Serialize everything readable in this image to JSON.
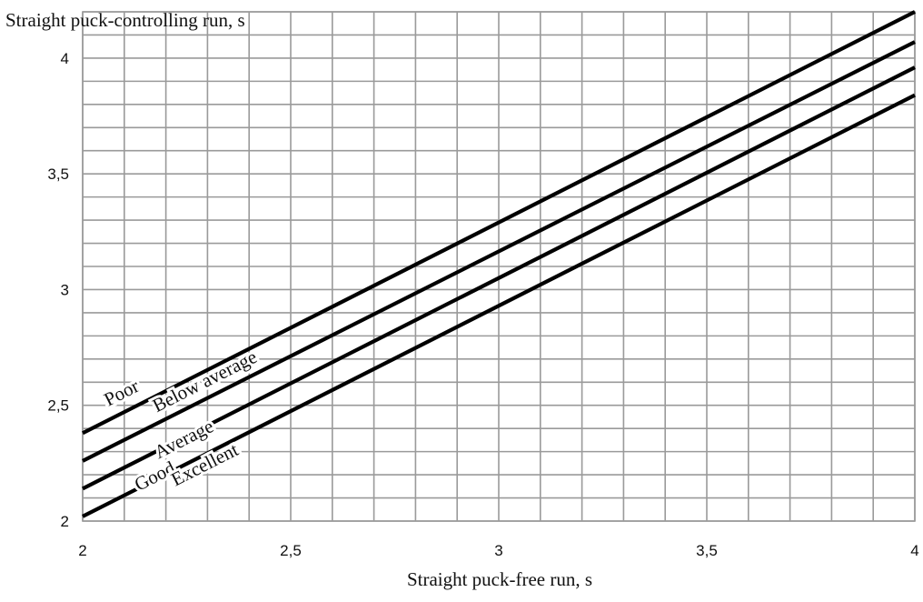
{
  "chart_data": {
    "type": "line",
    "title": "",
    "xlabel": "Straight puck-free run, s",
    "ylabel": "Straight puck-controlling run, s",
    "xlim": [
      2,
      4
    ],
    "ylim": [
      2,
      4.2
    ],
    "x_ticks": [
      "2",
      "2,5",
      "3",
      "3,5",
      "4"
    ],
    "y_ticks": [
      "2",
      "2,5",
      "3",
      "3,5",
      "4"
    ],
    "grid": true,
    "legend": "none",
    "series": [
      {
        "name": "Poor",
        "x": [
          2,
          4
        ],
        "y": [
          2.38,
          4.2
        ]
      },
      {
        "name": "Below average",
        "x": [
          2,
          4
        ],
        "y": [
          2.26,
          4.07
        ]
      },
      {
        "name": "Average",
        "x": [
          2,
          4
        ],
        "y": [
          2.14,
          3.96
        ]
      },
      {
        "name": "Good",
        "x": [
          2,
          4
        ],
        "y": [
          2.02,
          3.84
        ]
      },
      {
        "name": "Excellent",
        "x": [
          2,
          4
        ],
        "y": [
          2.02,
          3.84
        ]
      }
    ],
    "label_positions": [
      {
        "name": "Poor",
        "x": 2.1,
        "y": 2.53
      },
      {
        "name": "Below average",
        "x": 2.3,
        "y": 2.58
      },
      {
        "name": "Average",
        "x": 2.25,
        "y": 2.33
      },
      {
        "name": "Good",
        "x": 2.18,
        "y": 2.17
      },
      {
        "name": "Excellent",
        "x": 2.3,
        "y": 2.22
      }
    ],
    "line_color": "#000000",
    "grid_color": "#9a9a9a"
  }
}
